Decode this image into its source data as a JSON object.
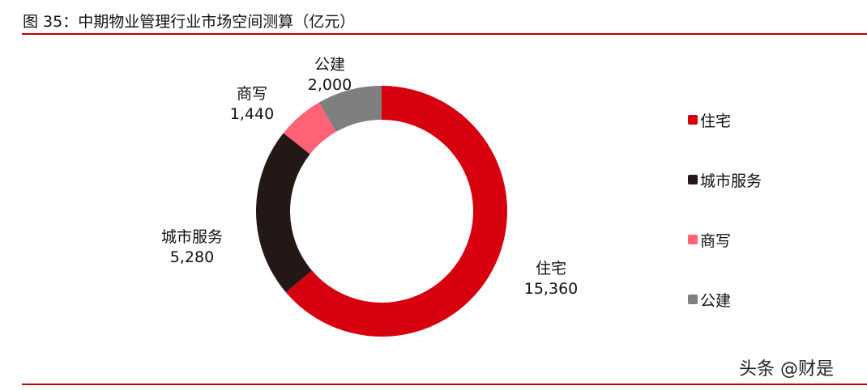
{
  "header": {
    "title": "图 35：中期物业管理行业市场空间测算（亿元）"
  },
  "chart_data": {
    "type": "pie",
    "variant": "donut",
    "title": "图 35：中期物业管理行业市场空间测算（亿元）",
    "unit": "亿元",
    "categories": [
      "住宅",
      "城市服务",
      "商写",
      "公建"
    ],
    "values": [
      15360,
      5280,
      1440,
      2000
    ],
    "value_labels": [
      "15,360",
      "5,280",
      "1,440",
      "2,000"
    ],
    "colors": [
      "#d7000f",
      "#231815",
      "#ff6175",
      "#7f7f7f"
    ],
    "start_angle_deg": 0,
    "direction": "clockwise",
    "legend_position": "right"
  },
  "labels": [
    {
      "name": "住宅",
      "value": "15,360"
    },
    {
      "name": "城市服务",
      "value": "5,280"
    },
    {
      "name": "商写",
      "value": "1,440"
    },
    {
      "name": "公建",
      "value": "2,000"
    }
  ],
  "legend": {
    "items": [
      {
        "label": "住宅",
        "color": "#d7000f"
      },
      {
        "label": "城市服务",
        "color": "#231815"
      },
      {
        "label": "商写",
        "color": "#ff6175"
      },
      {
        "label": "公建",
        "color": "#7f7f7f"
      }
    ]
  },
  "watermark": {
    "text": "头条 @财是"
  }
}
